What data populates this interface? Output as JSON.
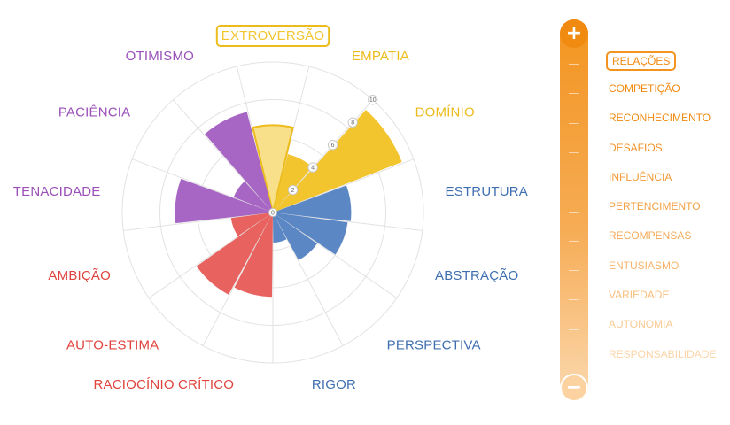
{
  "chart_data": {
    "type": "polar-area",
    "title": "EXTROVERSÃO",
    "rmax": 10,
    "ticks": [
      "2",
      "4",
      "6",
      "8",
      "10"
    ],
    "categories": [
      {
        "label": "EXTROVERSÃO",
        "value": 5.8,
        "color": "#f2c52e",
        "fill": "#f8df8a",
        "stroke": "#ecbc1c",
        "highlight": true
      },
      {
        "label": "EMPATIA",
        "value": 4.0,
        "color": "#ecbc1c",
        "fill": "#f2c52e"
      },
      {
        "label": "DOMÍNIO",
        "value": 9.2,
        "color": "#ecbc1c",
        "fill": "#f2c52e"
      },
      {
        "label": "ESTRUTURA",
        "value": 5.2,
        "color": "#3f6fb0",
        "fill": "#5b87c5"
      },
      {
        "label": "ABSTRAÇÃO",
        "value": 5.0,
        "color": "#3f6fb0",
        "fill": "#5b87c5"
      },
      {
        "label": "PERSPECTIVA",
        "value": 3.6,
        "color": "#3f6fb0",
        "fill": "#5b87c5"
      },
      {
        "label": "RIGOR",
        "value": 2.0,
        "color": "#3f6fb0",
        "fill": "#5b87c5"
      },
      {
        "label": "RACIOCÍNIO CRÍTICO",
        "value": 5.6,
        "color": "#e0433d",
        "fill": "#e8635f"
      },
      {
        "label": "AUTO-ESTIMA",
        "value": 6.2,
        "color": "#e0433d",
        "fill": "#e8635f"
      },
      {
        "label": "AMBIÇÃO",
        "value": 2.8,
        "color": "#e0433d",
        "fill": "#e8635f"
      },
      {
        "label": "TENACIDADE",
        "value": 6.5,
        "color": "#9a50b8",
        "fill": "#a766c4"
      },
      {
        "label": "PACIÊNCIA",
        "value": 2.8,
        "color": "#9a50b8",
        "fill": "#a766c4"
      },
      {
        "label": "OTIMISMO",
        "value": 6.9,
        "color": "#9a50b8",
        "fill": "#a766c4"
      }
    ]
  },
  "scale": {
    "plus_label": "+",
    "minus_label": "−",
    "header": "RELAÇÕES",
    "items": [
      "COMPETIÇÃO",
      "RECONHECIMENTO",
      "DESAFIOS",
      "INFLUÊNCIA",
      "PERTENCIMENTO",
      "RECOMPENSAS",
      "ENTUSIASMO",
      "VARIEDADE",
      "AUTONOMIA",
      "RESPONSABILIDADE"
    ],
    "item_colors": [
      "#f08a10",
      "#f08a10",
      "#f29225",
      "#f39a35",
      "#f4a245",
      "#f5aa58",
      "#f6b46a",
      "#f8c07e",
      "#f9ca93",
      "#fbd4a8"
    ]
  }
}
